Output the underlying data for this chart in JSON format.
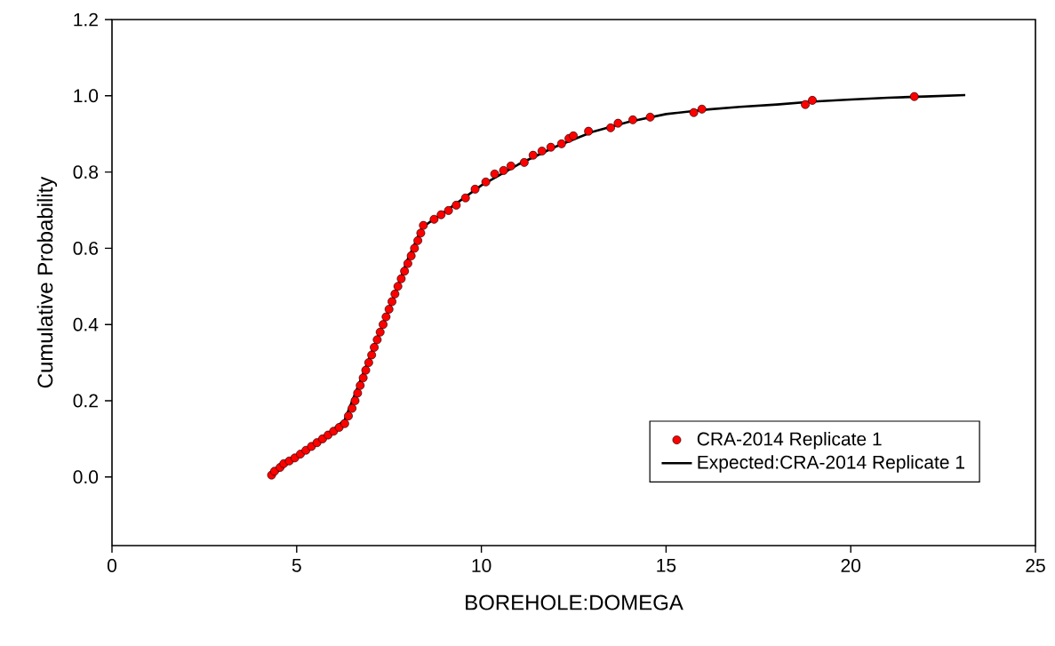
{
  "chart_data": {
    "type": "scatter",
    "xlabel": "BOREHOLE:DOMEGA",
    "ylabel": "Cumulative Probability",
    "xlim": [
      0,
      25
    ],
    "ylim": [
      -0.18,
      1.2
    ],
    "xticks": [
      0,
      5,
      10,
      15,
      20,
      25
    ],
    "yticks": [
      {
        "value": 0,
        "label": "0.0"
      },
      0.2,
      0.4,
      0.6,
      0.8,
      {
        "value": 1,
        "label": "1.0"
      },
      1.2
    ],
    "grid": false,
    "legend": "bottom right",
    "line_style": "solid",
    "series": [
      {
        "name": "CRA-2014 Replicate 1",
        "marker": "circle",
        "color": "#ff0000",
        "x": [
          4.32,
          4.4,
          4.55,
          4.65,
          4.8,
          4.95,
          5.1,
          5.25,
          5.4,
          5.55,
          5.7,
          5.85,
          6.0,
          6.15,
          6.3,
          6.4,
          6.5,
          6.58,
          6.65,
          6.72,
          6.8,
          6.87,
          6.95,
          7.03,
          7.1,
          7.18,
          7.26,
          7.34,
          7.42,
          7.5,
          7.58,
          7.66,
          7.74,
          7.83,
          7.92,
          8.01,
          8.1,
          8.19,
          8.28,
          8.36,
          8.43,
          8.72,
          8.91,
          9.11,
          9.32,
          9.57,
          9.83,
          10.12,
          10.36,
          10.6,
          10.8,
          11.16,
          11.4,
          11.64,
          11.88,
          12.17,
          12.37,
          12.49,
          12.9,
          13.5,
          13.7,
          14.1,
          14.57,
          15.75,
          15.97,
          18.77,
          18.96,
          21.72
        ],
        "values": [
          0.005,
          0.015,
          0.025,
          0.035,
          0.042,
          0.05,
          0.06,
          0.07,
          0.08,
          0.09,
          0.1,
          0.11,
          0.12,
          0.13,
          0.14,
          0.16,
          0.18,
          0.2,
          0.22,
          0.24,
          0.26,
          0.28,
          0.3,
          0.32,
          0.34,
          0.36,
          0.38,
          0.4,
          0.42,
          0.44,
          0.46,
          0.48,
          0.5,
          0.52,
          0.54,
          0.56,
          0.58,
          0.6,
          0.62,
          0.64,
          0.66,
          0.676,
          0.688,
          0.699,
          0.713,
          0.732,
          0.755,
          0.774,
          0.795,
          0.804,
          0.816,
          0.825,
          0.844,
          0.855,
          0.865,
          0.874,
          0.888,
          0.895,
          0.907,
          0.916,
          0.928,
          0.937,
          0.944,
          0.956,
          0.965,
          0.977,
          0.988,
          0.998
        ]
      },
      {
        "name": "Expected:CRA-2014 Replicate 1",
        "type": "line",
        "marker": "none",
        "color": "#000000",
        "x": [
          4.3,
          5.0,
          6.0,
          6.3,
          7.0,
          7.5,
          8.0,
          8.4,
          9.0,
          10.0,
          11.0,
          12.0,
          13.0,
          14.0,
          15.0,
          16.0,
          17.0,
          18.0,
          19.0,
          20.0,
          21.0,
          22.0,
          23.1
        ],
        "values": [
          0.0,
          0.055,
          0.125,
          0.15,
          0.32,
          0.44,
          0.57,
          0.655,
          0.695,
          0.765,
          0.82,
          0.866,
          0.905,
          0.932,
          0.952,
          0.963,
          0.971,
          0.977,
          0.985,
          0.99,
          0.995,
          0.998,
          1.002
        ]
      }
    ]
  }
}
